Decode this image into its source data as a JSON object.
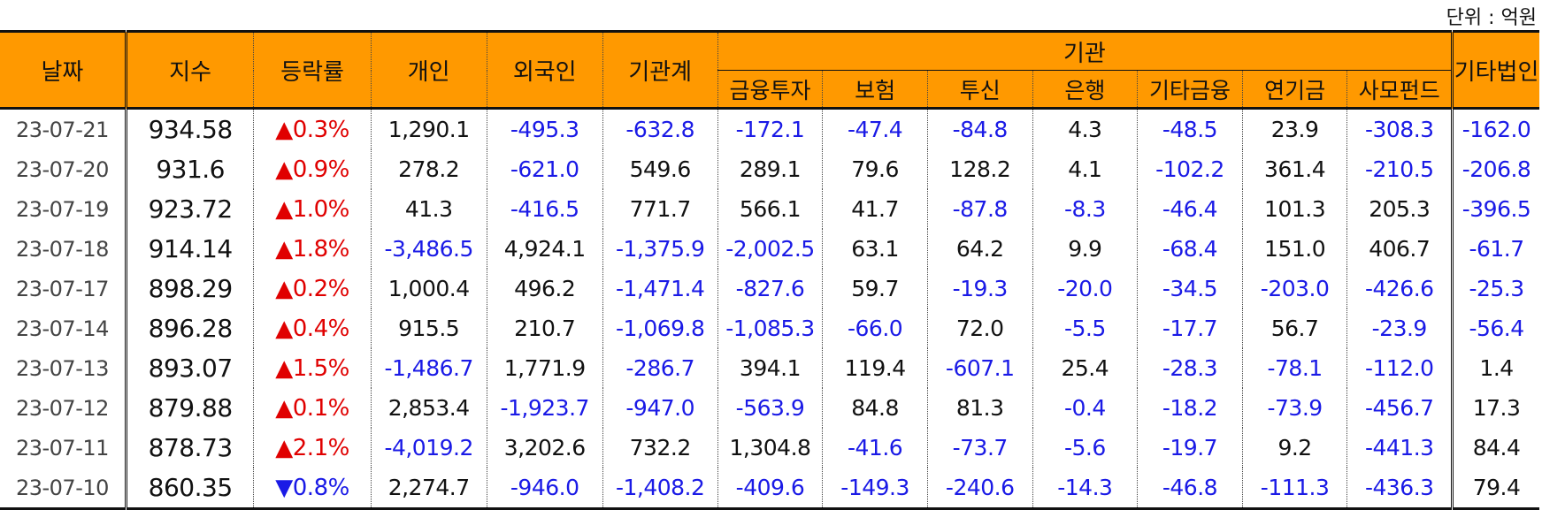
{
  "unit_label": "단위 : 억원",
  "headers": {
    "date": "날짜",
    "index": "지수",
    "change": "등락률",
    "individual": "개인",
    "foreign": "외국인",
    "institution_total": "기관계",
    "institution_group": "기관",
    "financial_investment": "금융투자",
    "insurance": "보험",
    "investment_trust": "투신",
    "bank": "은행",
    "other_financial": "기타금융",
    "pension": "연기금",
    "private_fund": "사모펀드",
    "other_corp": "기타법인"
  },
  "colors": {
    "header_bg": "#ff9900",
    "positive": "#e00000",
    "negative": "#1a1ae6"
  },
  "rows": [
    {
      "date": "23-07-21",
      "index": "934.58",
      "change": "▲0.3%",
      "vals": [
        "1,290.1",
        "-495.3",
        "-632.8",
        "-172.1",
        "-47.4",
        "-84.8",
        "4.3",
        "-48.5",
        "23.9",
        "-308.3",
        "-162.0"
      ]
    },
    {
      "date": "23-07-20",
      "index": "931.6",
      "change": "▲0.9%",
      "vals": [
        "278.2",
        "-621.0",
        "549.6",
        "289.1",
        "79.6",
        "128.2",
        "4.1",
        "-102.2",
        "361.4",
        "-210.5",
        "-206.8"
      ]
    },
    {
      "date": "23-07-19",
      "index": "923.72",
      "change": "▲1.0%",
      "vals": [
        "41.3",
        "-416.5",
        "771.7",
        "566.1",
        "41.7",
        "-87.8",
        "-8.3",
        "-46.4",
        "101.3",
        "205.3",
        "-396.5"
      ]
    },
    {
      "date": "23-07-18",
      "index": "914.14",
      "change": "▲1.8%",
      "vals": [
        "-3,486.5",
        "4,924.1",
        "-1,375.9",
        "-2,002.5",
        "63.1",
        "64.2",
        "9.9",
        "-68.4",
        "151.0",
        "406.7",
        "-61.7"
      ]
    },
    {
      "date": "23-07-17",
      "index": "898.29",
      "change": "▲0.2%",
      "vals": [
        "1,000.4",
        "496.2",
        "-1,471.4",
        "-827.6",
        "59.7",
        "-19.3",
        "-20.0",
        "-34.5",
        "-203.0",
        "-426.6",
        "-25.3"
      ]
    },
    {
      "date": "23-07-14",
      "index": "896.28",
      "change": "▲0.4%",
      "vals": [
        "915.5",
        "210.7",
        "-1,069.8",
        "-1,085.3",
        "-66.0",
        "72.0",
        "-5.5",
        "-17.7",
        "56.7",
        "-23.9",
        "-56.4"
      ]
    },
    {
      "date": "23-07-13",
      "index": "893.07",
      "change": "▲1.5%",
      "vals": [
        "-1,486.7",
        "1,771.9",
        "-286.7",
        "394.1",
        "119.4",
        "-607.1",
        "25.4",
        "-28.3",
        "-78.1",
        "-112.0",
        "1.4"
      ]
    },
    {
      "date": "23-07-12",
      "index": "879.88",
      "change": "▲0.1%",
      "vals": [
        "2,853.4",
        "-1,923.7",
        "-947.0",
        "-563.9",
        "84.8",
        "81.3",
        "-0.4",
        "-18.2",
        "-73.9",
        "-456.7",
        "17.3"
      ]
    },
    {
      "date": "23-07-11",
      "index": "878.73",
      "change": "▲2.1%",
      "vals": [
        "-4,019.2",
        "3,202.6",
        "732.2",
        "1,304.8",
        "-41.6",
        "-73.7",
        "-5.6",
        "-19.7",
        "9.2",
        "-441.3",
        "84.4"
      ]
    },
    {
      "date": "23-07-10",
      "index": "860.35",
      "change": "▼0.8%",
      "vals": [
        "2,274.7",
        "-946.0",
        "-1,408.2",
        "-409.6",
        "-149.3",
        "-240.6",
        "-14.3",
        "-46.8",
        "-111.3",
        "-436.3",
        "79.4"
      ]
    }
  ]
}
